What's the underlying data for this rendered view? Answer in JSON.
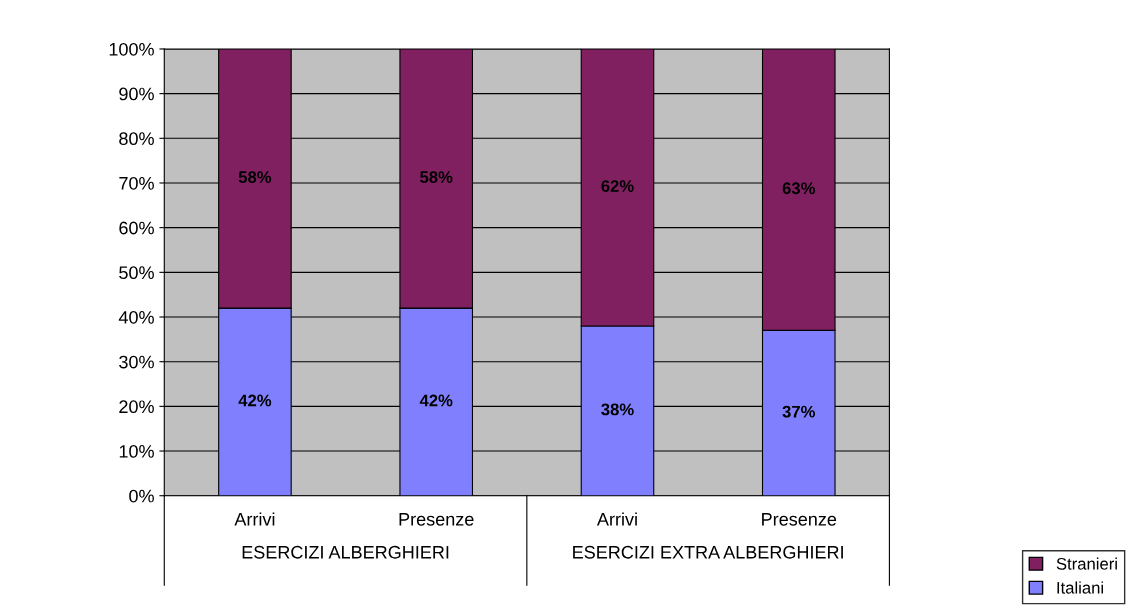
{
  "chart_data": {
    "type": "bar",
    "stacked": true,
    "categories": [
      "Arrivi",
      "Presenze",
      "Arrivi",
      "Presenze"
    ],
    "series": [
      {
        "name": "Italiani",
        "color": "#8080ff",
        "values": [
          42,
          42,
          38,
          37
        ],
        "value_labels": [
          "42%",
          "42%",
          "38%",
          "37%"
        ]
      },
      {
        "name": "Stranieri",
        "color": "#802060",
        "values": [
          58,
          58,
          62,
          63
        ],
        "value_labels": [
          "58%",
          "58%",
          "62%",
          "63%"
        ]
      }
    ],
    "annotations": [
      "ESERCIZI ALBERGHIERI",
      "ESERCIZI EXTRA ALBERGHIERI"
    ],
    "ylim": [
      0,
      100
    ],
    "yticks": [
      {
        "value": 0,
        "label": "0%"
      },
      {
        "value": 10,
        "label": "10%"
      },
      {
        "value": 20,
        "label": "20%"
      },
      {
        "value": 30,
        "label": "30%"
      },
      {
        "value": 40,
        "label": "40%"
      },
      {
        "value": 50,
        "label": "50%"
      },
      {
        "value": 60,
        "label": "60%"
      },
      {
        "value": 70,
        "label": "70%"
      },
      {
        "value": 80,
        "label": "80%"
      },
      {
        "value": 90,
        "label": "90%"
      },
      {
        "value": 100,
        "label": "100%"
      }
    ],
    "grid": "y",
    "legend": "bottom right"
  }
}
